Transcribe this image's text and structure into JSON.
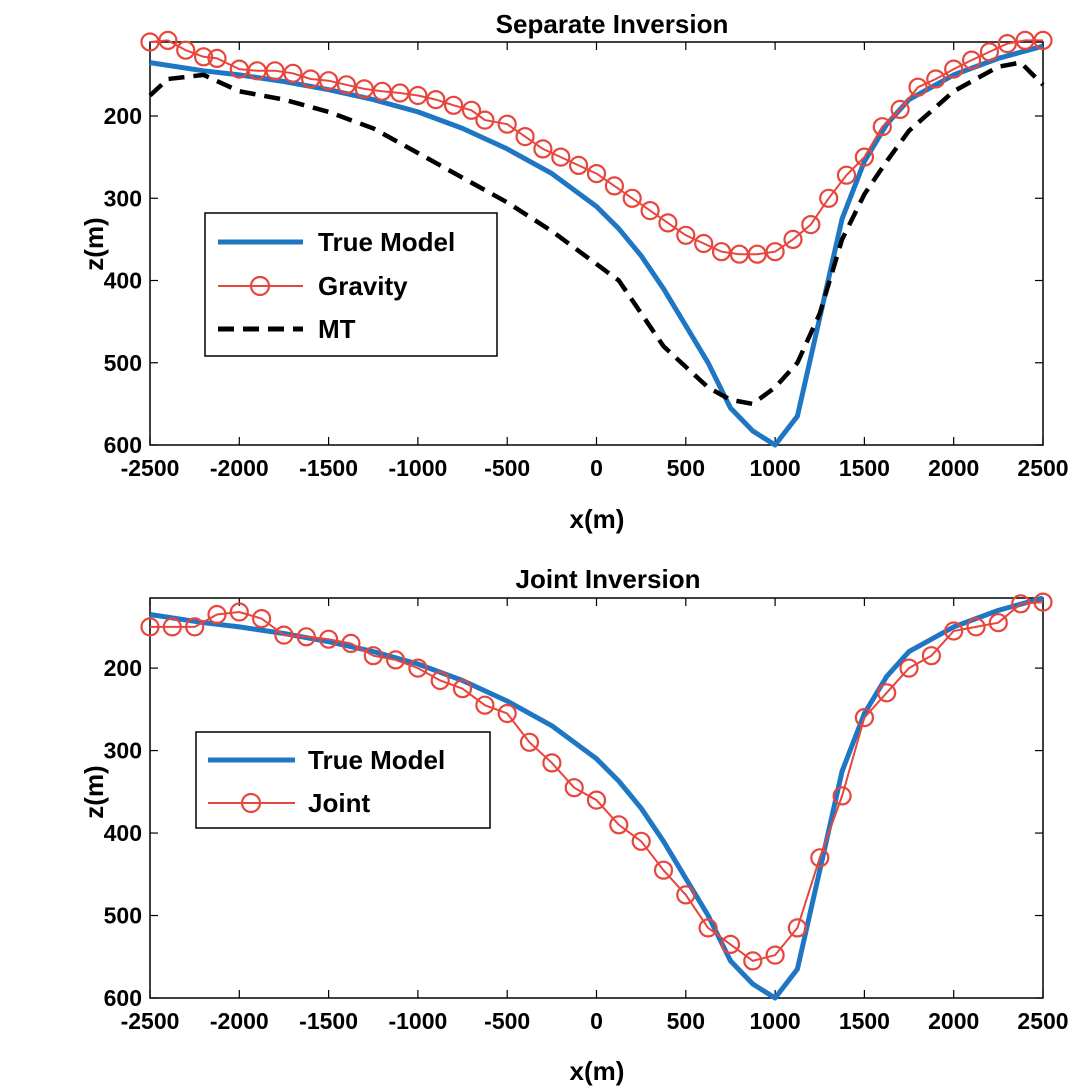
{
  "chart_data": [
    {
      "type": "line",
      "title": "Separate Inversion",
      "xlabel": "x(m)",
      "ylabel": "z(m)",
      "xlim": [
        -2500,
        2500
      ],
      "ylim": [
        600,
        110
      ],
      "y_reversed": true,
      "xticks": [
        -2500,
        -2000,
        -1500,
        -1000,
        -500,
        0,
        500,
        1000,
        1500,
        2000,
        2500
      ],
      "yticks": [
        200,
        300,
        400,
        500,
        600
      ],
      "legend_position": "left",
      "series": [
        {
          "name": "True Model",
          "color": "#1f77c4",
          "style": "solid",
          "x": [
            -2500,
            -2200,
            -2000,
            -1750,
            -1500,
            -1250,
            -1000,
            -750,
            -500,
            -250,
            0,
            125,
            250,
            375,
            500,
            625,
            750,
            875,
            1000,
            1125,
            1250,
            1375,
            1500,
            1625,
            1750,
            2000,
            2250,
            2500
          ],
          "y": [
            135,
            145,
            150,
            158,
            168,
            180,
            195,
            215,
            240,
            270,
            310,
            337,
            370,
            410,
            455,
            500,
            555,
            583,
            600,
            565,
            445,
            325,
            255,
            210,
            180,
            150,
            130,
            115
          ]
        },
        {
          "name": "Gravity",
          "color": "#e8453c",
          "style": "circles",
          "x": [
            -2500,
            -2400,
            -2300,
            -2200,
            -2125,
            -2000,
            -1900,
            -1800,
            -1700,
            -1600,
            -1500,
            -1400,
            -1300,
            -1200,
            -1100,
            -1000,
            -900,
            -800,
            -700,
            -625,
            -500,
            -400,
            -300,
            -200,
            -100,
            0,
            100,
            200,
            300,
            400,
            500,
            600,
            700,
            800,
            900,
            1000,
            1100,
            1200,
            1300,
            1400,
            1500,
            1600,
            1700,
            1800,
            1900,
            2000,
            2100,
            2200,
            2300,
            2400,
            2500
          ],
          "y": [
            110,
            108,
            120,
            128,
            130,
            143,
            145,
            145,
            148,
            155,
            157,
            162,
            167,
            170,
            172,
            175,
            180,
            187,
            193,
            205,
            210,
            225,
            240,
            250,
            260,
            270,
            285,
            300,
            315,
            330,
            345,
            355,
            365,
            368,
            368,
            365,
            350,
            332,
            300,
            272,
            250,
            213,
            192,
            165,
            155,
            143,
            132,
            122,
            112,
            108,
            108
          ]
        },
        {
          "name": "MT",
          "color": "#000000",
          "style": "dashed",
          "x": [
            -2500,
            -2400,
            -2200,
            -2000,
            -1750,
            -1500,
            -1250,
            -1000,
            -750,
            -500,
            -250,
            0,
            125,
            250,
            375,
            500,
            625,
            750,
            875,
            1000,
            1125,
            1250,
            1375,
            1500,
            1625,
            1750,
            2000,
            2250,
            2375,
            2500
          ],
          "y": [
            175,
            155,
            150,
            170,
            180,
            195,
            215,
            245,
            275,
            305,
            340,
            380,
            400,
            440,
            480,
            505,
            530,
            545,
            550,
            530,
            500,
            440,
            350,
            295,
            255,
            218,
            170,
            140,
            135,
            162
          ]
        }
      ]
    },
    {
      "type": "line",
      "title": "Joint Inversion",
      "xlabel": "x(m)",
      "ylabel": "z(m)",
      "xlim": [
        -2500,
        2500
      ],
      "ylim": [
        600,
        115
      ],
      "y_reversed": true,
      "xticks": [
        -2500,
        -2000,
        -1500,
        -1000,
        -500,
        0,
        500,
        1000,
        1500,
        2000,
        2500
      ],
      "yticks": [
        200,
        300,
        400,
        500,
        600
      ],
      "legend_position": "left",
      "series": [
        {
          "name": "True Model",
          "color": "#1f77c4",
          "style": "solid",
          "x": [
            -2500,
            -2200,
            -2000,
            -1750,
            -1500,
            -1250,
            -1000,
            -750,
            -500,
            -250,
            0,
            125,
            250,
            375,
            500,
            625,
            750,
            875,
            1000,
            1125,
            1250,
            1375,
            1500,
            1625,
            1750,
            2000,
            2250,
            2500
          ],
          "y": [
            135,
            145,
            150,
            158,
            168,
            180,
            195,
            215,
            240,
            270,
            310,
            337,
            370,
            410,
            455,
            500,
            555,
            583,
            600,
            565,
            445,
            325,
            255,
            210,
            180,
            150,
            130,
            115
          ]
        },
        {
          "name": "Joint",
          "color": "#e8453c",
          "style": "circles",
          "x": [
            -2500,
            -2375,
            -2250,
            -2125,
            -2000,
            -1875,
            -1750,
            -1625,
            -1500,
            -1375,
            -1250,
            -1125,
            -1000,
            -875,
            -750,
            -625,
            -500,
            -375,
            -250,
            -125,
            0,
            125,
            250,
            375,
            500,
            625,
            750,
            875,
            1000,
            1125,
            1250,
            1375,
            1500,
            1625,
            1750,
            1875,
            2000,
            2125,
            2250,
            2375,
            2500
          ],
          "y": [
            150,
            150,
            150,
            135,
            132,
            140,
            160,
            162,
            165,
            170,
            185,
            190,
            200,
            215,
            225,
            245,
            255,
            290,
            315,
            345,
            360,
            390,
            410,
            445,
            475,
            515,
            535,
            555,
            548,
            515,
            430,
            355,
            260,
            230,
            200,
            185,
            155,
            150,
            145,
            122,
            120
          ]
        }
      ]
    }
  ]
}
